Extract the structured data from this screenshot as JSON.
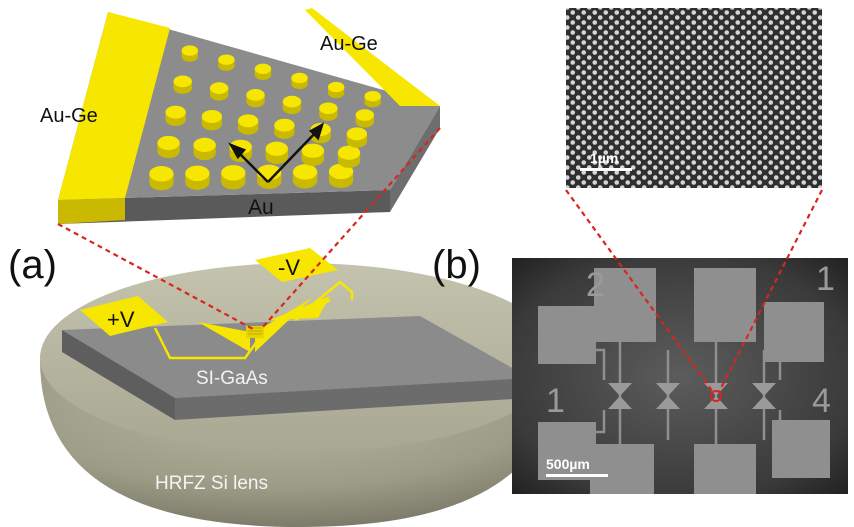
{
  "panels": {
    "a": {
      "letter": "(a)",
      "contact_left": "Au-Ge",
      "contact_right": "Au-Ge",
      "dots_label": "Au",
      "plus_pad": "+V",
      "minus_pad": "-V",
      "substrate": "SI-GaAs",
      "lens": "HRFZ Si lens"
    },
    "b": {
      "letter": "(b)",
      "sem_scale": "1µm",
      "optical_scale": "500µm",
      "pad_numbers": [
        "2",
        "1",
        "1",
        "4"
      ]
    }
  },
  "colors": {
    "gold": "#f7e600",
    "gaas": "#8a8a8a",
    "lens": "#9c9c84",
    "guide": "#d9251d"
  }
}
